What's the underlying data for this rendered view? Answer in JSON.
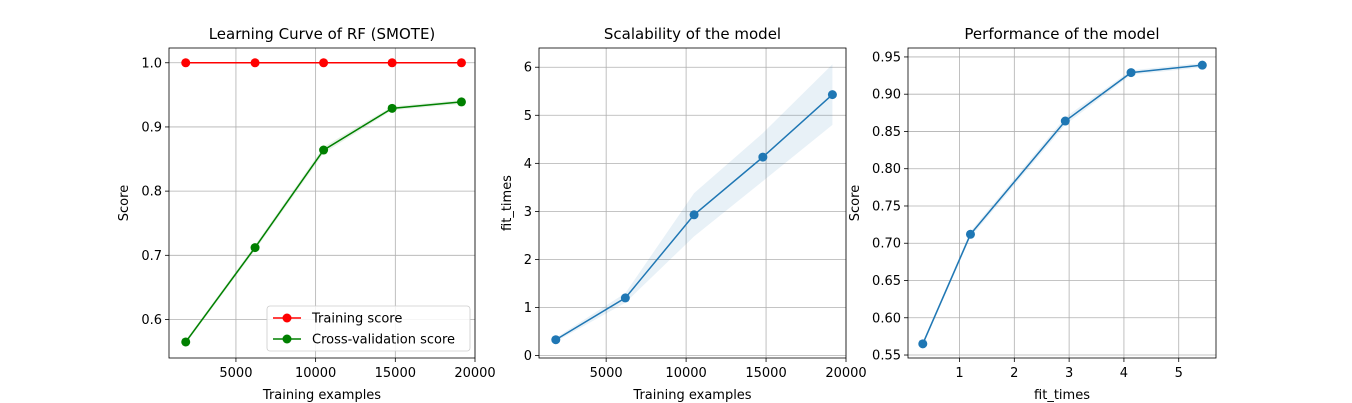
{
  "chart_data": [
    {
      "type": "line",
      "title": "Learning Curve of RF (SMOTE)",
      "xlabel": "Training examples",
      "ylabel": "Score",
      "xlim": [
        800,
        20000
      ],
      "ylim": [
        0.54,
        1.023
      ],
      "xticks": [
        5000,
        10000,
        15000,
        20000
      ],
      "xtick_labels": [
        "5000",
        "10000",
        "15000",
        "20000"
      ],
      "yticks": [
        0.6,
        0.7,
        0.8,
        0.9,
        1.0
      ],
      "ytick_labels": [
        "0.6",
        "0.7",
        "0.8",
        "0.9",
        "1.0"
      ],
      "grid": true,
      "legend": "lower-right",
      "x": [
        1850,
        6200,
        10500,
        14800,
        19150
      ],
      "series": [
        {
          "name": "Training score",
          "color": "#ff0000",
          "values": [
            1.0,
            1.0,
            1.0,
            1.0,
            1.0
          ],
          "band": [
            0.0005,
            0.0005,
            0.0005,
            0.0005,
            0.0005
          ]
        },
        {
          "name": "Cross-validation score",
          "color": "#008000",
          "values": [
            0.565,
            0.712,
            0.864,
            0.929,
            0.939
          ],
          "band": [
            0.003,
            0.004,
            0.005,
            0.003,
            0.003
          ]
        }
      ]
    },
    {
      "type": "line",
      "title": "Scalability of the model",
      "xlabel": "Training examples",
      "ylabel": "fit_times",
      "xlim": [
        800,
        20000
      ],
      "ylim": [
        -0.05,
        6.4
      ],
      "xticks": [
        5000,
        10000,
        15000,
        20000
      ],
      "xtick_labels": [
        "5000",
        "10000",
        "15000",
        "20000"
      ],
      "yticks": [
        0,
        1,
        2,
        3,
        4,
        5,
        6
      ],
      "ytick_labels": [
        "0",
        "1",
        "2",
        "3",
        "4",
        "5",
        "6"
      ],
      "grid": true,
      "x": [
        1850,
        6200,
        10500,
        14800,
        19150
      ],
      "series": [
        {
          "color": "#1f77b4",
          "values": [
            0.33,
            1.2,
            2.93,
            4.13,
            5.43
          ],
          "band": [
            0.04,
            0.1,
            0.45,
            0.5,
            0.63
          ]
        }
      ]
    },
    {
      "type": "line",
      "title": "Performance of the model",
      "xlabel": "fit_times",
      "ylabel": "Score",
      "xlim": [
        0.06,
        5.68
      ],
      "ylim": [
        0.546,
        0.962
      ],
      "xticks": [
        1,
        2,
        3,
        4,
        5
      ],
      "xtick_labels": [
        "1",
        "2",
        "3",
        "4",
        "5"
      ],
      "yticks": [
        0.55,
        0.6,
        0.65,
        0.7,
        0.75,
        0.8,
        0.85,
        0.9,
        0.95
      ],
      "ytick_labels": [
        "0.55",
        "0.60",
        "0.65",
        "0.70",
        "0.75",
        "0.80",
        "0.85",
        "0.90",
        "0.95"
      ],
      "grid": true,
      "x": [
        0.33,
        1.2,
        2.93,
        4.13,
        5.43
      ],
      "series": [
        {
          "color": "#1f77b4",
          "values": [
            0.565,
            0.712,
            0.864,
            0.929,
            0.939
          ],
          "band": [
            0.003,
            0.004,
            0.005,
            0.003,
            0.003
          ]
        }
      ]
    }
  ]
}
